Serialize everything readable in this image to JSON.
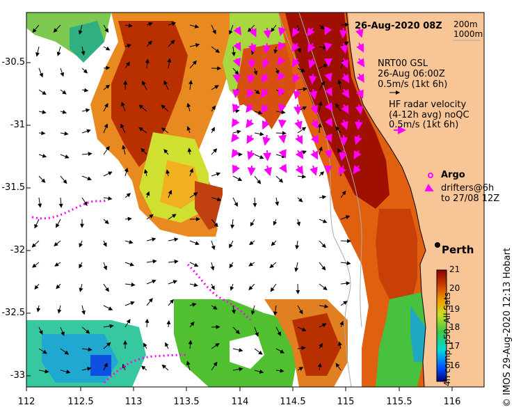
{
  "title": {
    "date": "26-Aug-2020 08Z"
  },
  "isobaths": [
    "200m",
    "1000m"
  ],
  "wind_legend": {
    "model": "NRT00 GSL",
    "time": "26-Aug 06:00Z",
    "scale": "0.5m/s (1kt 6h)"
  },
  "radar_legend": {
    "line1": "HF radar velocity",
    "line2": "(4-12h avg) noQC",
    "scale": "0.5m/s (1kt 6h)"
  },
  "argo_legend": {
    "label": "Argo"
  },
  "drifter_legend": {
    "line1": "drifters@6h",
    "line2": "to 27/08 12Z"
  },
  "place": {
    "name": "Perth"
  },
  "colorbar": {
    "min": 16,
    "max": 21,
    "ticks": [
      "21",
      "20",
      "19",
      "18",
      "17",
      "16"
    ],
    "label": "4h comp, p50, All Sats"
  },
  "y_ticks": [
    "-30.5",
    "-31",
    "-31.5",
    "-32",
    "-32.5",
    "-33"
  ],
  "x_ticks": [
    "112",
    "112.5",
    "113",
    "113.5",
    "114",
    "114.5",
    "115",
    "115.5",
    "116"
  ],
  "credit": "©  IMOS 29-Aug-2020 12:13 Hobart",
  "colors": {
    "land": "#f8c596",
    "drifter": "#ff00ff",
    "argo": "#ff00ff",
    "coast": "#000000",
    "bathy": "#aaaaaa"
  }
}
